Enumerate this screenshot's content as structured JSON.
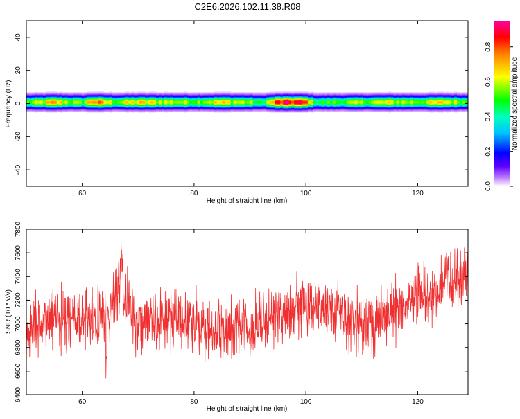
{
  "title": "C2E6.2026.102.11.38.R08",
  "colors": {
    "snr_line": "#f03030",
    "colorbar": [
      "#ffffff",
      "#8000ff",
      "#0000ff",
      "#00ffff",
      "#00ff00",
      "#ffff00",
      "#ff0000",
      "#ff00a0"
    ]
  },
  "chart_data": [
    {
      "type": "heatmap",
      "xlabel": "Height of straight line (km)",
      "ylabel": "Frequency (Hz)",
      "xlim": [
        50,
        129
      ],
      "ylim": [
        -50,
        50
      ],
      "x_ticks": [
        60,
        80,
        100,
        120
      ],
      "y_ticks": [
        -40,
        -20,
        0,
        20,
        40
      ],
      "band": {
        "frequency_center": 1,
        "frequency_halfwidth": 4,
        "amplitude_at_x": [
          [
            50,
            0.55
          ],
          [
            52,
            0.6
          ],
          [
            55,
            0.75
          ],
          [
            58,
            0.6
          ],
          [
            60,
            0.55
          ],
          [
            62,
            0.85
          ],
          [
            64,
            0.7
          ],
          [
            66,
            0.6
          ],
          [
            70,
            0.7
          ],
          [
            75,
            0.65
          ],
          [
            80,
            0.6
          ],
          [
            85,
            0.7
          ],
          [
            90,
            0.6
          ],
          [
            92,
            0.45
          ],
          [
            95,
            0.9
          ],
          [
            98,
            0.95
          ],
          [
            100,
            0.85
          ],
          [
            102,
            0.5
          ],
          [
            105,
            0.55
          ],
          [
            110,
            0.6
          ],
          [
            115,
            0.65
          ],
          [
            120,
            0.6
          ],
          [
            125,
            0.7
          ],
          [
            129,
            0.55
          ]
        ]
      },
      "colorbar": {
        "label": "Normalized spectral amplitude",
        "range": [
          0,
          0.95
        ],
        "ticks": [
          0.0,
          0.2,
          0.4,
          0.6,
          0.8
        ]
      }
    },
    {
      "type": "line",
      "xlabel": "Height of straight line (km)",
      "ylabel": "SNR (10 * v/v)",
      "xlim": [
        50,
        129
      ],
      "ylim": [
        6400,
        7800
      ],
      "x_ticks": [
        60,
        80,
        100,
        120
      ],
      "y_ticks": [
        6400,
        6600,
        6800,
        7000,
        7200,
        7400,
        7600,
        7800
      ],
      "series": [
        {
          "trend": [
            [
              50,
              6900
            ],
            [
              55,
              7050
            ],
            [
              60,
              7000
            ],
            [
              65,
              7100
            ],
            [
              67,
              7300
            ],
            [
              70,
              7000
            ],
            [
              75,
              7050
            ],
            [
              80,
              7000
            ],
            [
              85,
              6950
            ],
            [
              90,
              7000
            ],
            [
              95,
              7050
            ],
            [
              100,
              7150
            ],
            [
              105,
              7100
            ],
            [
              110,
              7000
            ],
            [
              115,
              7100
            ],
            [
              120,
              7200
            ],
            [
              125,
              7350
            ],
            [
              129,
              7400
            ]
          ],
          "noise_amplitude": 180,
          "samples": 1600
        }
      ]
    }
  ]
}
